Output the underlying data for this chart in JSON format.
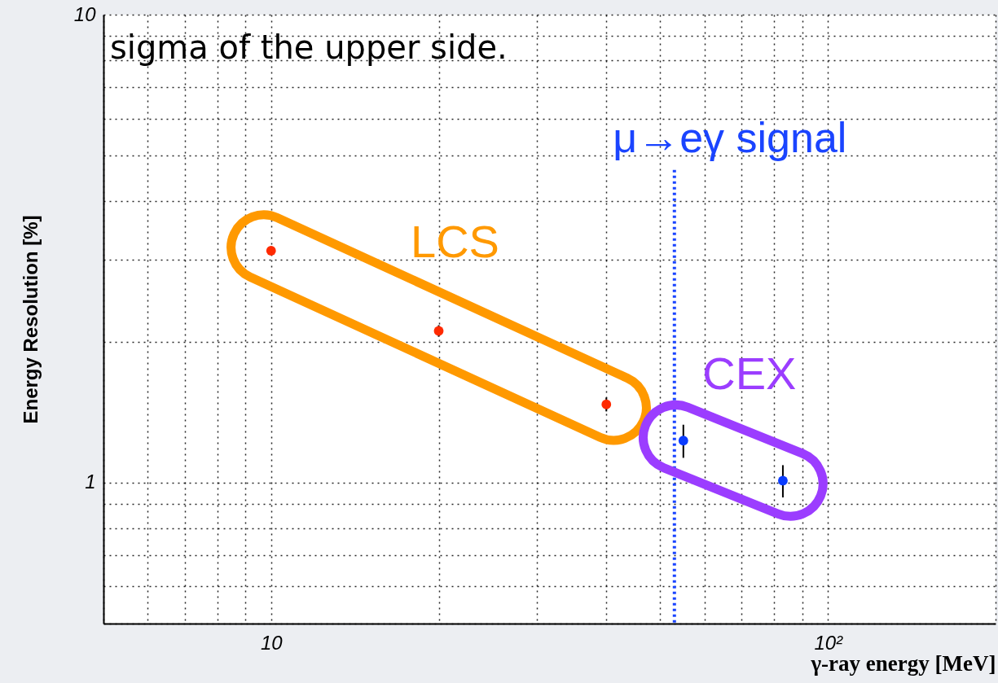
{
  "chart_data": {
    "type": "scatter",
    "xlabel": "γ-ray energy [MeV]",
    "ylabel": "Energy Resolution [%]",
    "log": "xy",
    "xlim": [
      5,
      200
    ],
    "ylim": [
      0.5,
      10
    ],
    "xticks": [
      {
        "value": 5,
        "label": null
      },
      {
        "value": 6,
        "label": null
      },
      {
        "value": 7,
        "label": null
      },
      {
        "value": 8,
        "label": null
      },
      {
        "value": 9,
        "label": null
      },
      10,
      {
        "value": 20,
        "label": null
      },
      {
        "value": 30,
        "label": null
      },
      {
        "value": 40,
        "label": null
      },
      {
        "value": 50,
        "label": null
      },
      {
        "value": 60,
        "label": null
      },
      {
        "value": 70,
        "label": null
      },
      {
        "value": 80,
        "label": null
      },
      {
        "value": 90,
        "label": null
      },
      {
        "value": 100,
        "label": "10²"
      },
      {
        "value": 200,
        "label": null
      }
    ],
    "yticks": [
      {
        "value": 0.5,
        "label": null
      },
      {
        "value": 0.6,
        "label": null
      },
      {
        "value": 0.7,
        "label": null
      },
      {
        "value": 0.8,
        "label": null
      },
      {
        "value": 0.9,
        "label": null
      },
      1,
      {
        "value": 2,
        "label": null
      },
      {
        "value": 3,
        "label": null
      },
      {
        "value": 4,
        "label": null
      },
      {
        "value": 5,
        "label": null
      },
      {
        "value": 6,
        "label": null
      },
      {
        "value": 7,
        "label": null
      },
      {
        "value": 8,
        "label": null
      },
      {
        "value": 9,
        "label": null
      },
      10
    ],
    "grid": true,
    "marker": "circle",
    "series": [
      {
        "name": "LCS",
        "color": "#ff2a00",
        "x": [
          10,
          20,
          40
        ],
        "values": [
          3.13,
          2.11,
          1.47
        ],
        "errors": [
          null,
          [
            2.05,
            2.17
          ],
          [
            1.42,
            1.52
          ]
        ]
      },
      {
        "name": "CEX",
        "color": "#0a3cff",
        "x": [
          55,
          83
        ],
        "values": [
          1.23,
          1.01
        ],
        "errors": [
          [
            1.13,
            1.33
          ],
          [
            0.93,
            1.09
          ]
        ]
      }
    ],
    "ref_lines": [
      {
        "axis": "x",
        "value": 53,
        "label": "μ→eγ signal",
        "color": "#1a44ff",
        "line_style": "dotted"
      }
    ],
    "annotations": [
      "sigma of the upper side."
    ]
  }
}
